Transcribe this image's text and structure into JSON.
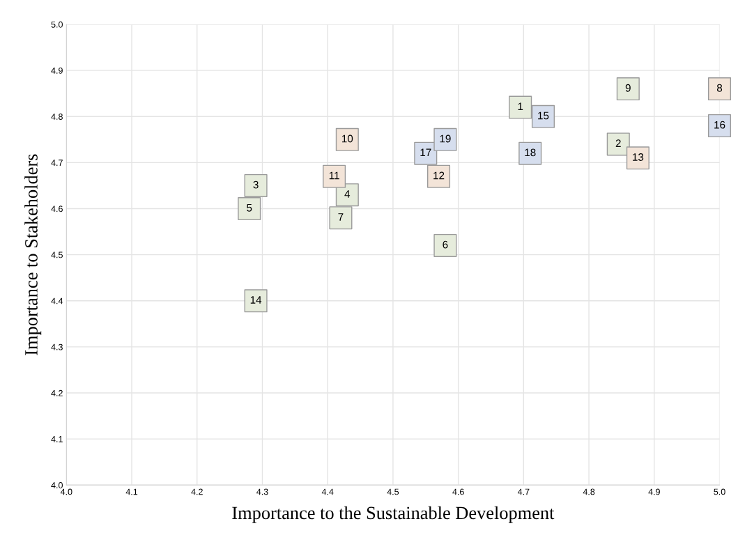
{
  "chart_data": {
    "type": "scatter",
    "xlabel": "Importance to the Sustainable Development",
    "ylabel": "Importance to Stakeholders",
    "xlim": [
      4.0,
      5.0
    ],
    "ylim": [
      4.0,
      5.0
    ],
    "xticks": [
      {
        "value": 4.0,
        "label": "4.0"
      },
      4.1,
      4.2,
      4.3,
      4.4,
      4.5,
      4.6,
      4.7,
      4.8,
      4.9,
      {
        "value": 5.0,
        "label": "5.0"
      }
    ],
    "yticks": [
      {
        "value": 4.0,
        "label": "4.0"
      },
      4.1,
      4.2,
      4.3,
      4.4,
      4.5,
      4.6,
      4.7,
      4.8,
      4.9,
      {
        "value": 5.0,
        "label": "5.0"
      }
    ],
    "grid": true,
    "marker": "square",
    "legend": false,
    "series": [
      {
        "color": "#e6ecdc",
        "x": [
          4.695,
          4.845,
          4.29,
          4.43,
          4.28,
          4.58,
          4.42,
          4.86,
          4.29
        ],
        "values": [
          4.82,
          4.74,
          4.65,
          4.63,
          4.6,
          4.52,
          4.58,
          4.86,
          4.4
        ]
      },
      {
        "color": "#f3e4d8",
        "x": [
          5.0,
          4.43,
          4.41,
          4.57,
          4.875
        ],
        "values": [
          4.86,
          4.75,
          4.67,
          4.67,
          4.71
        ]
      },
      {
        "color": "#d6deee",
        "x": [
          4.73,
          5.0,
          4.55,
          4.71,
          4.58
        ],
        "values": [
          4.8,
          4.78,
          4.72,
          4.72,
          4.75
        ]
      }
    ],
    "annotations": [
      {
        "text": "1",
        "x": 4.695,
        "y": 4.82
      },
      {
        "text": "2",
        "x": 4.845,
        "y": 4.74
      },
      {
        "text": "3",
        "x": 4.29,
        "y": 4.65
      },
      {
        "text": "4",
        "x": 4.43,
        "y": 4.63
      },
      {
        "text": "5",
        "x": 4.28,
        "y": 4.6
      },
      {
        "text": "6",
        "x": 4.58,
        "y": 4.52
      },
      {
        "text": "7",
        "x": 4.42,
        "y": 4.58
      },
      {
        "text": "8",
        "x": 5.0,
        "y": 4.86
      },
      {
        "text": "9",
        "x": 4.86,
        "y": 4.86
      },
      {
        "text": "10",
        "x": 4.43,
        "y": 4.75
      },
      {
        "text": "11",
        "x": 4.41,
        "y": 4.67
      },
      {
        "text": "12",
        "x": 4.57,
        "y": 4.67
      },
      {
        "text": "13",
        "x": 4.875,
        "y": 4.71
      },
      {
        "text": "14",
        "x": 4.29,
        "y": 4.4
      },
      {
        "text": "15",
        "x": 4.73,
        "y": 4.8
      },
      {
        "text": "16",
        "x": 5.0,
        "y": 4.78
      },
      {
        "text": "17",
        "x": 4.55,
        "y": 4.72
      },
      {
        "text": "18",
        "x": 4.71,
        "y": 4.72
      },
      {
        "text": "19",
        "x": 4.58,
        "y": 4.75
      }
    ]
  }
}
